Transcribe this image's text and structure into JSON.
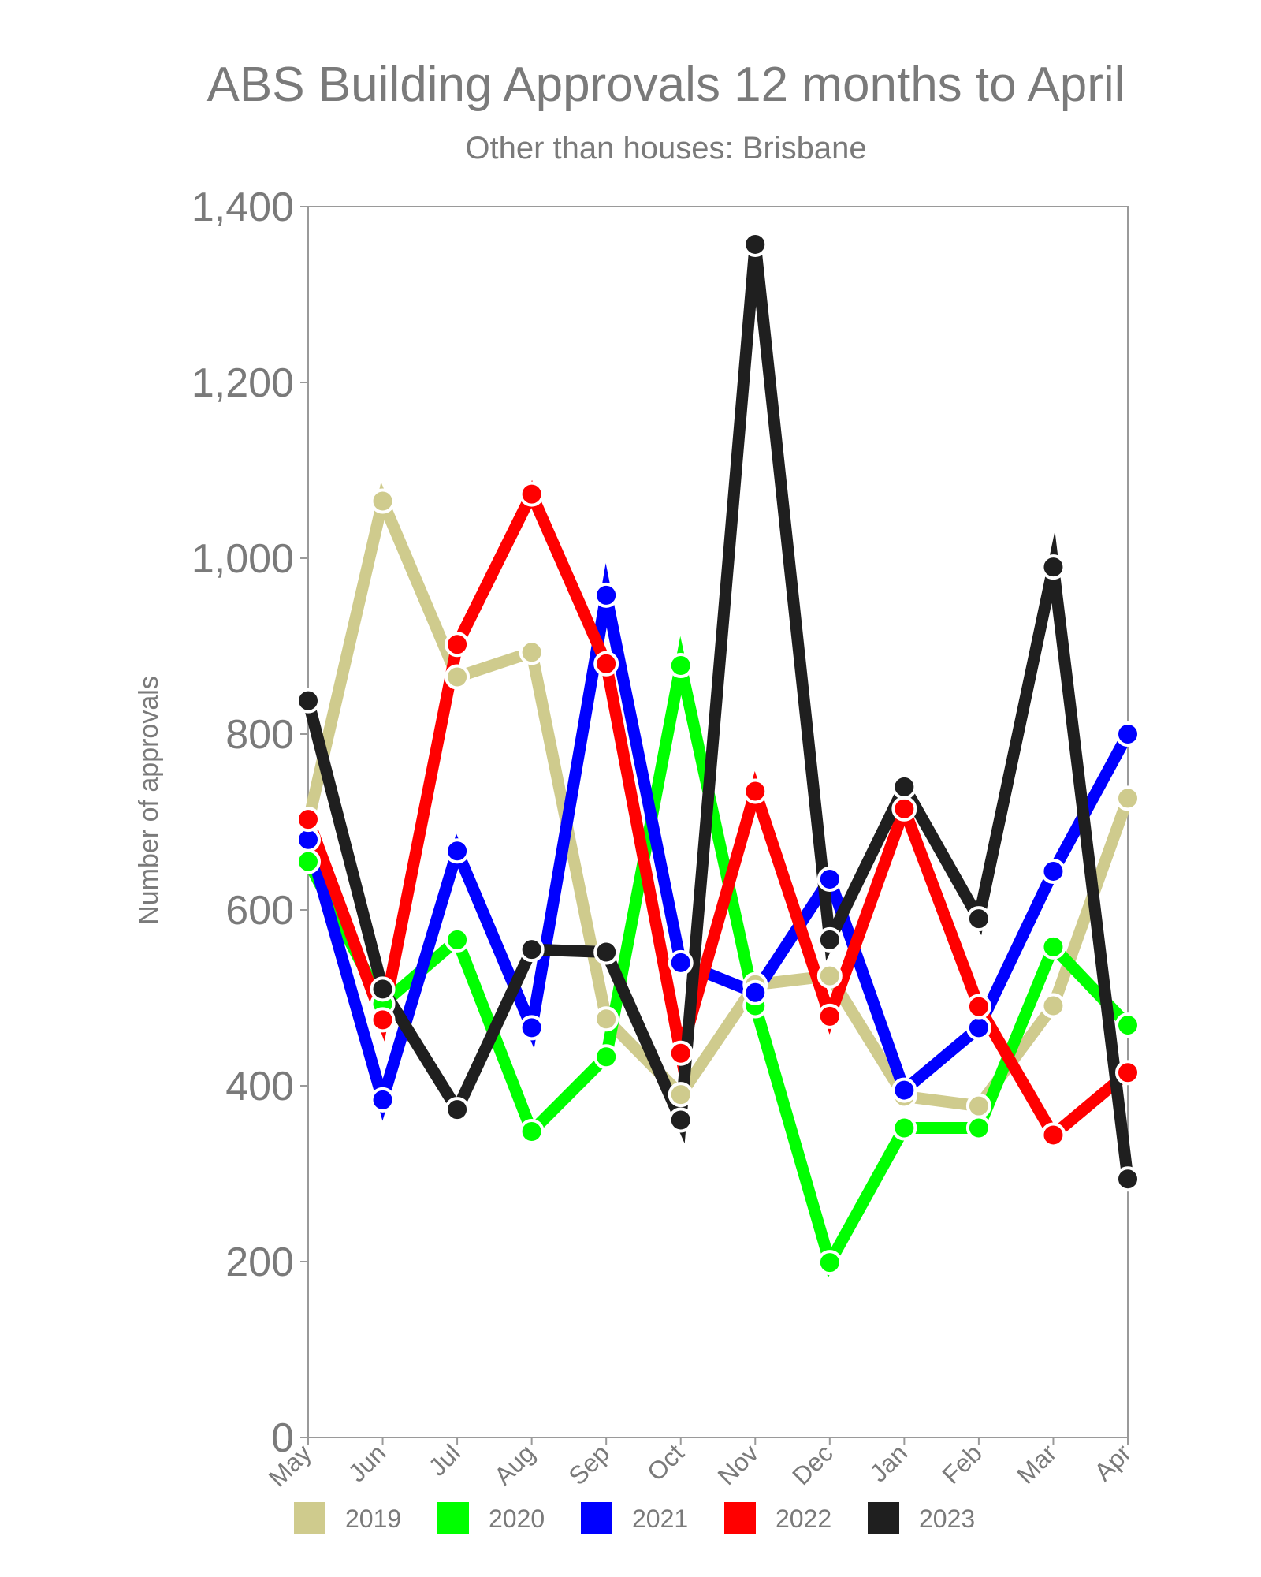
{
  "chart_data": {
    "type": "line",
    "title": "ABS Building Approvals 12 months to April",
    "subtitle": "Other than houses: Brisbane",
    "xlabel": "",
    "ylabel": "Number of approvals",
    "ylim": [
      0,
      1400
    ],
    "yticks": [
      0,
      200,
      400,
      600,
      800,
      1000,
      1200,
      1400
    ],
    "ytick_labels": [
      "0",
      "200",
      "400",
      "600",
      "800",
      "1,000",
      "1,200",
      "1,400"
    ],
    "categories": [
      "May",
      "Jun",
      "Jul",
      "Aug",
      "Sep",
      "Oct",
      "Nov",
      "Dec",
      "Jan",
      "Feb",
      "Mar",
      "Apr"
    ],
    "grid": false,
    "legend_position": "bottom",
    "series": [
      {
        "name": "2019",
        "color": "#cfcb8d",
        "values": [
          700,
          1065,
          865,
          893,
          476,
          390,
          515,
          525,
          388,
          377,
          491,
          727
        ]
      },
      {
        "name": "2020",
        "color": "#00ff00",
        "values": [
          655,
          493,
          566,
          348,
          433,
          878,
          491,
          199,
          352,
          352,
          558,
          469
        ]
      },
      {
        "name": "2021",
        "color": "#0000ff",
        "values": [
          680,
          384,
          667,
          466,
          958,
          540,
          506,
          635,
          395,
          466,
          644,
          800
        ]
      },
      {
        "name": "2022",
        "color": "#ff0000",
        "values": [
          703,
          475,
          902,
          1073,
          880,
          437,
          735,
          479,
          715,
          490,
          344,
          415
        ]
      },
      {
        "name": "2023",
        "color": "#1f1f1f",
        "values": [
          838,
          510,
          373,
          555,
          552,
          361,
          1357,
          566,
          740,
          590,
          990,
          294
        ]
      }
    ]
  }
}
